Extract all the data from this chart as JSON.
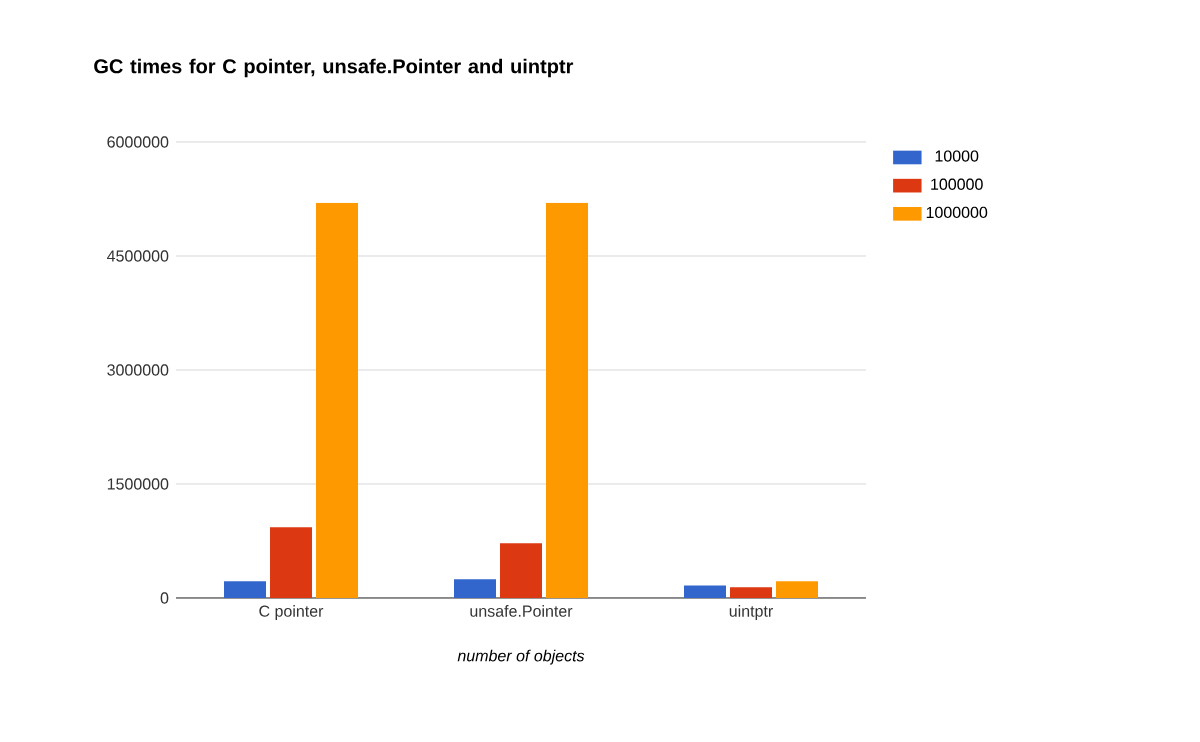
{
  "chart_data": {
    "type": "bar",
    "title": "GC times for C pointer, unsafe.Pointer and uintptr",
    "xlabel": "number of objects",
    "categories": [
      "C pointer",
      "unsafe.Pointer",
      "uintptr"
    ],
    "series": [
      {
        "name": "10000",
        "color": "#3366cc",
        "values": [
          220000,
          245000,
          165000
        ]
      },
      {
        "name": "100000",
        "color": "#dc3912",
        "values": [
          930000,
          720000,
          140000
        ]
      },
      {
        "name": "1000000",
        "color": "#ff9900",
        "values": [
          5200000,
          5200000,
          220000
        ]
      }
    ],
    "ylim": [
      0,
      6000000
    ],
    "yticks": [
      0,
      1500000,
      3000000,
      4500000,
      6000000
    ],
    "grid": "y",
    "legend": "top right"
  }
}
